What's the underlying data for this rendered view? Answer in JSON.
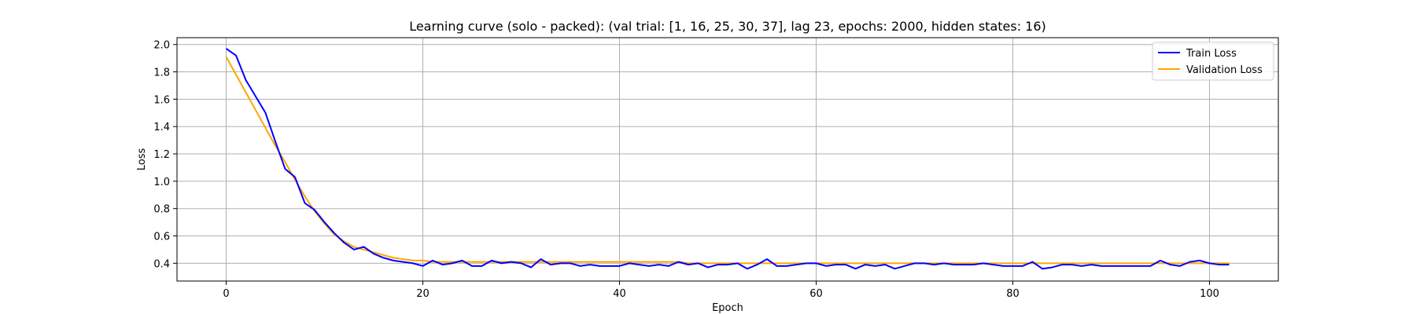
{
  "chart_data": {
    "type": "line",
    "title": "Learning curve (solo - packed): (val trial: [1, 16, 25, 30, 37], lag 23, epochs: 2000, hidden states: 16)",
    "xlabel": "Epoch",
    "ylabel": "Loss",
    "xlim": [
      -5,
      107
    ],
    "ylim": [
      0.27,
      2.05
    ],
    "xticks": [
      0,
      20,
      40,
      60,
      80,
      100
    ],
    "yticks": [
      0.4,
      0.6,
      0.8,
      1.0,
      1.2,
      1.4,
      1.6,
      1.8,
      2.0
    ],
    "xtick_labels": [
      "0",
      "20",
      "40",
      "60",
      "80",
      "100"
    ],
    "ytick_labels": [
      "0.4",
      "0.6",
      "0.8",
      "1.0",
      "1.2",
      "1.4",
      "1.6",
      "1.8",
      "2.0"
    ],
    "grid": true,
    "legend_position": "top-right",
    "series": [
      {
        "name": "Train Loss",
        "color": "#0000ff",
        "y": [
          1.97,
          1.92,
          1.74,
          1.62,
          1.5,
          1.29,
          1.09,
          1.03,
          0.84,
          0.79,
          0.7,
          0.62,
          0.55,
          0.5,
          0.52,
          0.47,
          0.44,
          0.42,
          0.41,
          0.4,
          0.38,
          0.42,
          0.39,
          0.4,
          0.42,
          0.38,
          0.38,
          0.42,
          0.4,
          0.41,
          0.4,
          0.37,
          0.43,
          0.39,
          0.4,
          0.4,
          0.38,
          0.39,
          0.38,
          0.38,
          0.38,
          0.4,
          0.39,
          0.38,
          0.39,
          0.38,
          0.41,
          0.39,
          0.4,
          0.37,
          0.39,
          0.39,
          0.4,
          0.36,
          0.39,
          0.43,
          0.38,
          0.38,
          0.39,
          0.4,
          0.4,
          0.38,
          0.39,
          0.39,
          0.36,
          0.39,
          0.38,
          0.39,
          0.36,
          0.38,
          0.4,
          0.4,
          0.39,
          0.4,
          0.39,
          0.39,
          0.39,
          0.4,
          0.39,
          0.38,
          0.38,
          0.38,
          0.41,
          0.36,
          0.37,
          0.39,
          0.39,
          0.38,
          0.39,
          0.38,
          0.38,
          0.38,
          0.38,
          0.38,
          0.38,
          0.42,
          0.39,
          0.38,
          0.41,
          0.42,
          0.4,
          0.39,
          0.39
        ]
      },
      {
        "name": "Validation Loss",
        "color": "#ffa500",
        "y": [
          1.91,
          1.78,
          1.65,
          1.52,
          1.39,
          1.26,
          1.14,
          1.01,
          0.89,
          0.78,
          0.69,
          0.61,
          0.56,
          0.52,
          0.5,
          0.48,
          0.46,
          0.44,
          0.43,
          0.42,
          0.42,
          0.41,
          0.41,
          0.41,
          0.41,
          0.41,
          0.41,
          0.41,
          0.41,
          0.41,
          0.41,
          0.41,
          0.41,
          0.41,
          0.41,
          0.41,
          0.41,
          0.41,
          0.41,
          0.41,
          0.41,
          0.41,
          0.41,
          0.41,
          0.41,
          0.41,
          0.41,
          0.4,
          0.4,
          0.4,
          0.4,
          0.4,
          0.4,
          0.4,
          0.4,
          0.4,
          0.4,
          0.4,
          0.4,
          0.4,
          0.4,
          0.4,
          0.4,
          0.4,
          0.4,
          0.4,
          0.4,
          0.4,
          0.4,
          0.4,
          0.4,
          0.4,
          0.4,
          0.4,
          0.4,
          0.4,
          0.4,
          0.4,
          0.4,
          0.4,
          0.4,
          0.4,
          0.4,
          0.4,
          0.4,
          0.4,
          0.4,
          0.4,
          0.4,
          0.4,
          0.4,
          0.4,
          0.4,
          0.4,
          0.4,
          0.4,
          0.4,
          0.4,
          0.4,
          0.4,
          0.4,
          0.4,
          0.4
        ]
      }
    ]
  }
}
